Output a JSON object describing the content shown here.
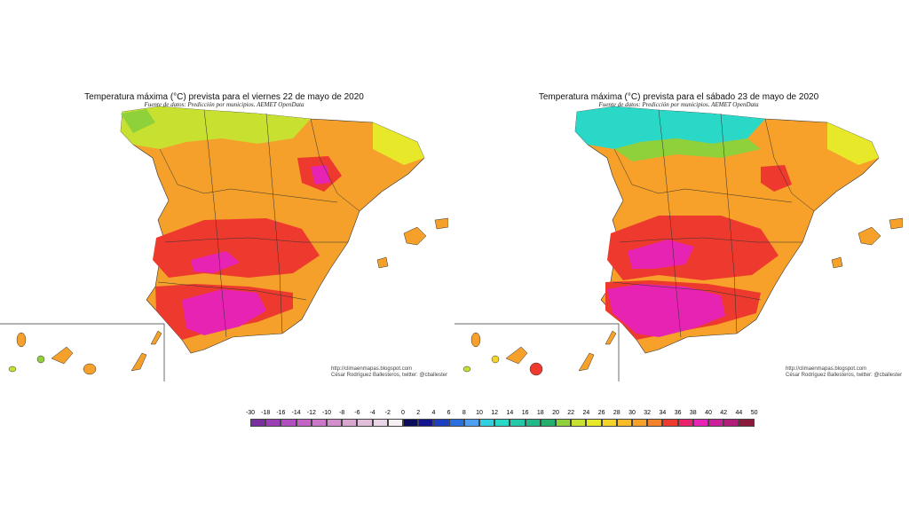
{
  "maps": [
    {
      "title": "Temperatura máxima (°C) prevista para el viernes 22 de mayo de 2020",
      "subtitle": "Fuente de datos: Predicción por municipios. AEMET OpenData",
      "credit_url": "http://climaenmapas.blogspot.com",
      "credit_author": "César Rodríguez Ballesteros, twitter: @cballester"
    },
    {
      "title": "Temperatura máxima (°C) prevista para el sábado 23 de mayo de 2020",
      "subtitle": "Fuente de datos: Predicción por municipios. AEMET OpenData",
      "credit_url": "http://climaenmapas.blogspot.com",
      "credit_author": "César Rodríguez Ballesteros, twitter: @cballester"
    }
  ],
  "legend": {
    "labels": [
      "-30",
      "-18",
      "-16",
      "-14",
      "-12",
      "-10",
      "-8",
      "-6",
      "-4",
      "-2",
      "0",
      "2",
      "4",
      "6",
      "8",
      "10",
      "12",
      "14",
      "16",
      "18",
      "20",
      "22",
      "24",
      "26",
      "28",
      "30",
      "32",
      "34",
      "36",
      "38",
      "40",
      "42",
      "44",
      "50"
    ],
    "colors": [
      "#7a2fa0",
      "#9b3fb5",
      "#b24fc0",
      "#c463c6",
      "#cc78c8",
      "#d28fcb",
      "#d9a6d0",
      "#e1bfda",
      "#e9d6e6",
      "#f4f0f4",
      "#0c0c5c",
      "#14148f",
      "#1d3fbf",
      "#2a6fe0",
      "#4f9ff0",
      "#2fd0e0",
      "#2ad8c8",
      "#25c9a9",
      "#22b88a",
      "#22b06b",
      "#8fd13a",
      "#c8e030",
      "#e8e82a",
      "#f4d428",
      "#f8bb2a",
      "#f7a02a",
      "#f4822a",
      "#ee3a2e",
      "#e8236b",
      "#e623b2",
      "#cc1f99",
      "#b21c7a",
      "#8c1a3a"
    ]
  }
}
